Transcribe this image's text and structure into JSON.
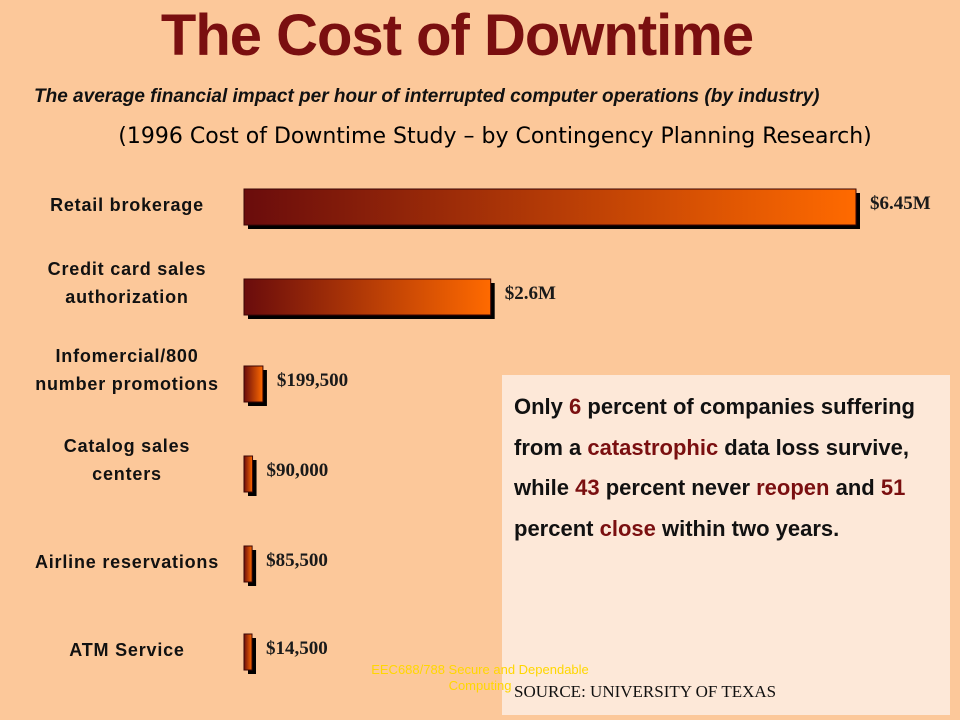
{
  "header": {
    "title": "The Cost of Downtime",
    "subtitle": "The average financial impact per hour of interrupted computer operations (by industry)",
    "study": "(1996 Cost of Downtime Study – by Contingency Planning Research)"
  },
  "chart_data": {
    "type": "bar",
    "orientation": "horizontal",
    "title": "The Cost of Downtime",
    "categories": [
      [
        "Retail brokerage"
      ],
      [
        "Credit card sales",
        "authorization"
      ],
      [
        "Infomercial/800",
        "number promotions"
      ],
      [
        "Catalog sales",
        "centers"
      ],
      [
        "Airline reservations"
      ],
      [
        "ATM Service"
      ]
    ],
    "values": [
      6450000,
      2600000,
      199500,
      90000,
      85500,
      14500
    ],
    "value_labels": [
      "$6.45M",
      "$2.6M",
      "$199,500",
      "$90,000",
      "$85,500",
      "$14,500"
    ],
    "xlim": [
      0,
      6450000
    ],
    "grid": false,
    "colors": {
      "start": "#6a0c0c",
      "end": "#ff6a00",
      "shadow": "#000000"
    }
  },
  "callout": {
    "parts": [
      {
        "text": "Only ",
        "hl": false
      },
      {
        "text": "6",
        "hl": true
      },
      {
        "text": " percent of companies suffering from a ",
        "hl": false
      },
      {
        "text": "catastrophic",
        "hl": true
      },
      {
        "text": " data loss survive, while ",
        "hl": false
      },
      {
        "text": "43",
        "hl": true
      },
      {
        "text": " percent never ",
        "hl": false
      },
      {
        "text": "reopen",
        "hl": true
      },
      {
        "text": " and ",
        "hl": false
      },
      {
        "text": "51",
        "hl": true
      },
      {
        "text": " percent ",
        "hl": false
      },
      {
        "text": "close",
        "hl": true
      },
      {
        "text": " within two years.",
        "hl": false
      }
    ],
    "source": "SOURCE: UNIVERSITY OF TEXAS"
  },
  "footer": {
    "line1": "EEC688/788 Secure and Dependable",
    "line2": "Computing"
  },
  "colors": {
    "background": "#fcc89a",
    "title": "#7a0f10",
    "highlight": "#7a0f10",
    "callout_bg": "#fde8d8",
    "footer": "#ffd700"
  }
}
